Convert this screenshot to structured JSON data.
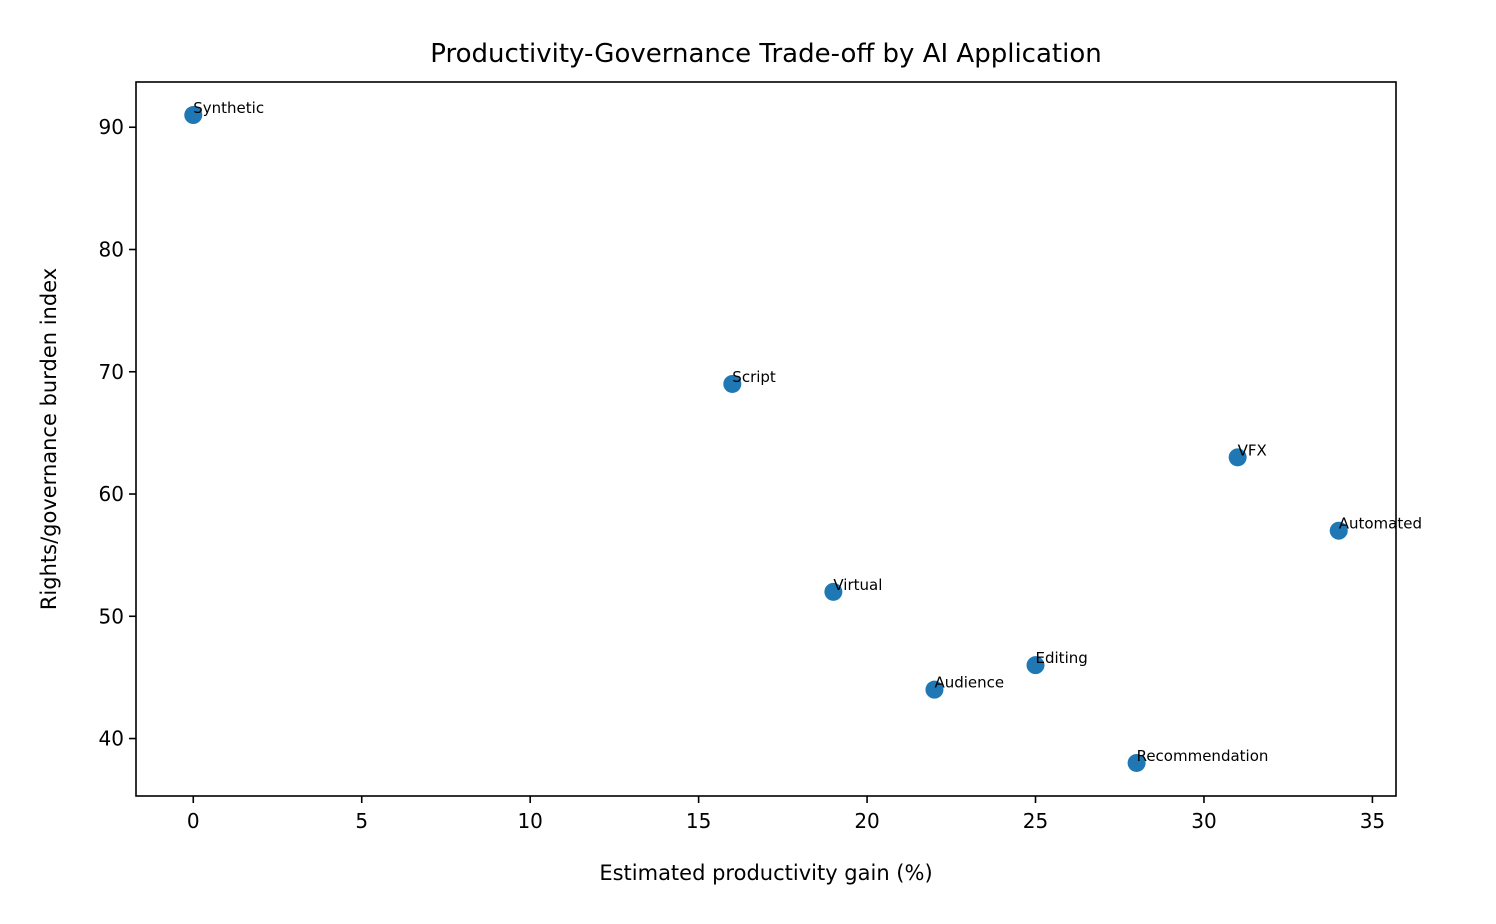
{
  "chart_data": {
    "type": "scatter",
    "title": "Productivity-Governance Trade-off by AI Application",
    "xlabel": "Estimated productivity gain (%)",
    "ylabel": "Rights/governance burden index",
    "xlim": [
      -1.7,
      35.7
    ],
    "ylim": [
      35.3,
      93.7
    ],
    "xticks": [
      0,
      5,
      10,
      15,
      20,
      25,
      30,
      35
    ],
    "yticks": [
      40,
      50,
      60,
      70,
      80,
      90
    ],
    "grid": false,
    "color": "#1f77b4",
    "points": [
      {
        "label": "Synthetic",
        "x": 0,
        "y": 91
      },
      {
        "label": "Script",
        "x": 16,
        "y": 69
      },
      {
        "label": "VFX",
        "x": 31,
        "y": 63
      },
      {
        "label": "Automated",
        "x": 34,
        "y": 57
      },
      {
        "label": "Virtual",
        "x": 19,
        "y": 52
      },
      {
        "label": "Editing",
        "x": 25,
        "y": 46
      },
      {
        "label": "Audience",
        "x": 22,
        "y": 44
      },
      {
        "label": "Recommendation",
        "x": 28,
        "y": 38
      }
    ]
  }
}
